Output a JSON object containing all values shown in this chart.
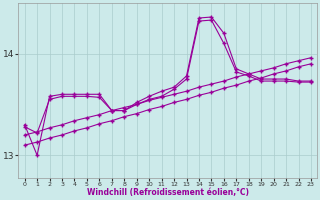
{
  "xlabel": "Windchill (Refroidissement éolien,°C)",
  "ylabel": "",
  "background_color": "#cceaea",
  "line_color": "#990099",
  "grid_color": "#aacccc",
  "xlim": [
    -0.5,
    23.5
  ],
  "ylim": [
    12.78,
    14.5
  ],
  "yticks": [
    13,
    14
  ],
  "xticks": [
    0,
    1,
    2,
    3,
    4,
    5,
    6,
    7,
    8,
    9,
    10,
    11,
    12,
    13,
    14,
    15,
    16,
    17,
    18,
    19,
    20,
    21,
    22,
    23
  ],
  "series": {
    "line_straight1_x": [
      0,
      1,
      2,
      3,
      4,
      5,
      6,
      7,
      8,
      9,
      10,
      11,
      12,
      13,
      14,
      15,
      16,
      17,
      18,
      19,
      20,
      21,
      22,
      23
    ],
    "line_straight1_y": [
      13.1,
      13.13,
      13.17,
      13.2,
      13.24,
      13.27,
      13.31,
      13.34,
      13.38,
      13.41,
      13.45,
      13.48,
      13.52,
      13.55,
      13.59,
      13.62,
      13.66,
      13.69,
      13.73,
      13.76,
      13.8,
      13.83,
      13.87,
      13.9
    ],
    "line_straight2_x": [
      0,
      1,
      2,
      3,
      4,
      5,
      6,
      7,
      8,
      9,
      10,
      11,
      12,
      13,
      14,
      15,
      16,
      17,
      18,
      19,
      20,
      21,
      22,
      23
    ],
    "line_straight2_y": [
      13.2,
      13.23,
      13.27,
      13.3,
      13.34,
      13.37,
      13.4,
      13.44,
      13.47,
      13.5,
      13.54,
      13.57,
      13.6,
      13.63,
      13.67,
      13.7,
      13.73,
      13.77,
      13.8,
      13.83,
      13.86,
      13.9,
      13.93,
      13.96
    ],
    "line_wave1_x": [
      0,
      1,
      2,
      3,
      4,
      5,
      6,
      7,
      8,
      9,
      10,
      11,
      12,
      13,
      14,
      15,
      16,
      17,
      18,
      19,
      20,
      21,
      22,
      23
    ],
    "line_wave1_y": [
      13.28,
      13.22,
      13.55,
      13.58,
      13.58,
      13.58,
      13.57,
      13.44,
      13.44,
      13.5,
      13.55,
      13.58,
      13.65,
      13.75,
      14.32,
      14.33,
      14.1,
      13.82,
      13.78,
      13.73,
      13.73,
      13.73,
      13.72,
      13.72
    ],
    "line_wave2_x": [
      0,
      1,
      2,
      3,
      4,
      5,
      6,
      7,
      8,
      9,
      10,
      11,
      12,
      13,
      14,
      15,
      16,
      17,
      18,
      19,
      20,
      21,
      22,
      23
    ],
    "line_wave2_y": [
      13.3,
      13.0,
      13.58,
      13.6,
      13.6,
      13.6,
      13.6,
      13.44,
      13.44,
      13.52,
      13.58,
      13.63,
      13.67,
      13.78,
      14.35,
      14.36,
      14.2,
      13.85,
      13.8,
      13.75,
      13.75,
      13.75,
      13.73,
      13.73
    ]
  },
  "marker": "+",
  "marker_size": 3,
  "linewidth": 0.8
}
